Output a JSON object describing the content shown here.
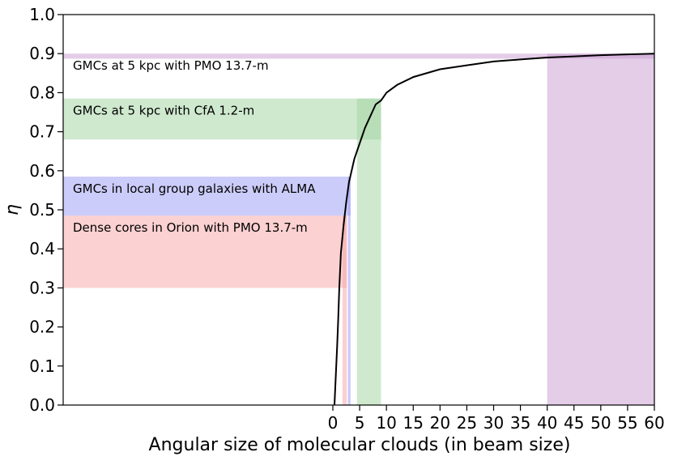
{
  "chart_data": {
    "type": "area",
    "xlabel": "Angular size of molecular clouds (in beam size)",
    "ylabel": "η",
    "xlim": [
      0,
      60
    ],
    "ylim": [
      0,
      1
    ],
    "x_ticks": [
      0,
      5,
      10,
      15,
      20,
      25,
      30,
      35,
      40,
      45,
      50,
      55,
      60
    ],
    "y_ticks": [
      0.0,
      0.1,
      0.2,
      0.3,
      0.4,
      0.5,
      0.6,
      0.7,
      0.8,
      0.9,
      1.0
    ],
    "y_tick_labels": [
      "0.0",
      "0.1",
      "0.2",
      "0.3",
      "0.4",
      "0.5",
      "0.6",
      "0.7",
      "0.8",
      "0.9",
      "1.0"
    ],
    "x_tick_labels": [
      "0",
      "5",
      "10",
      "15",
      "20",
      "25",
      "30",
      "35",
      "40",
      "45",
      "50",
      "55",
      "60"
    ],
    "grid": false,
    "curve": {
      "color": "#000000",
      "x": [
        0.3,
        0.5,
        0.8,
        1.0,
        1.2,
        1.5,
        2.0,
        2.5,
        3.0,
        4.0,
        5.0,
        6.0,
        7.0,
        8.0,
        9.0,
        10.0,
        12.0,
        15.0,
        20.0,
        25.0,
        30.0,
        35.0,
        40.0,
        45.0,
        50.0,
        55.0,
        60.0
      ],
      "y": [
        0.0,
        0.06,
        0.15,
        0.22,
        0.3,
        0.39,
        0.46,
        0.52,
        0.57,
        0.63,
        0.67,
        0.71,
        0.74,
        0.77,
        0.78,
        0.8,
        0.82,
        0.84,
        0.86,
        0.87,
        0.88,
        0.885,
        0.89,
        0.893,
        0.896,
        0.898,
        0.9
      ]
    },
    "bands": [
      {
        "name": "GMCs at 5 kpc with PMO 13.7-m",
        "label": "GMCs at 5 kpc with PMO 13.7-m",
        "color": "#c79bd0",
        "y_range": [
          0.887,
          0.9
        ],
        "x_range": [
          40,
          60
        ]
      },
      {
        "name": "GMCs at 5 kpc with CfA 1.2-m",
        "label": "GMCs at 5 kpc with CfA 1.2-m",
        "color": "#9fd39f",
        "y_range": [
          0.68,
          0.785
        ],
        "x_range": [
          4.5,
          9.0
        ]
      },
      {
        "name": "GMCs in local group galaxies with ALMA",
        "label": "GMCs in local group galaxies with ALMA",
        "color": "#9a9af5",
        "y_range": [
          0.485,
          0.585
        ],
        "x_range": [
          2.8,
          3.3
        ]
      },
      {
        "name": "Dense cores in Orion with PMO 13.7-m",
        "label": "Dense cores in Orion with PMO 13.7-m",
        "color": "#f7a3a3",
        "y_range": [
          0.3,
          0.485
        ],
        "x_range": [
          1.8,
          2.6
        ]
      }
    ]
  }
}
